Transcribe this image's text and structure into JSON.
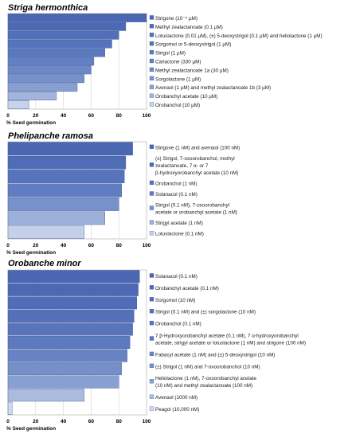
{
  "chart_data": [
    {
      "type": "bar",
      "orientation": "horizontal",
      "title": "Striga hermonthica",
      "xlabel": "% Seed germination",
      "xlim": [
        0,
        100
      ],
      "ticks": [
        0,
        20,
        40,
        60,
        80,
        100
      ],
      "grid": true,
      "legend": "right",
      "series": [
        {
          "name": "Strigone (10⁻⁵ µM)",
          "value": 100,
          "color": "#4b67b4"
        },
        {
          "name": "Methyl zealactanoate (0.1 µM)",
          "value": 85,
          "color": "#4d69b6"
        },
        {
          "name": "Lotuslactone (0.01 µM), (±) 5-deoxystrigol (0.1 µM) and heliolactone (1 µM)",
          "value": 80,
          "color": "#5170b9"
        },
        {
          "name": "Sorgomol or 5-deoxystrigol (1 µM)",
          "value": 75,
          "color": "#5574bb"
        },
        {
          "name": "Strigol (1 µM)",
          "value": 70,
          "color": "#5a79be"
        },
        {
          "name": "Carlactone (330 µM)",
          "value": 62,
          "color": "#6380c2"
        },
        {
          "name": "Methyl zealactanoate 1a (30 µM)",
          "value": 60,
          "color": "#6c88c6"
        },
        {
          "name": "Sorgolactone (1 µM)",
          "value": 55,
          "color": "#7792cb"
        },
        {
          "name": "Avenaol (1 µM) and methyl zealactanoate 1b (3 µM)",
          "value": 50,
          "color": "#879fd1"
        },
        {
          "name": "Orobanchyl acetate (10 µM)",
          "value": 35,
          "color": "#a3b5dc"
        },
        {
          "name": "Orobanchol (10 µM)",
          "value": 15,
          "color": "#c8d3eb"
        }
      ]
    },
    {
      "type": "bar",
      "orientation": "horizontal",
      "title": "Phelipanche ramosa",
      "xlabel": "% Seed germination",
      "xlim": [
        0,
        100
      ],
      "ticks": [
        0,
        20,
        40,
        60,
        80,
        100
      ],
      "grid": true,
      "legend": "right",
      "series": [
        {
          "name": "Strigone (1 nM) and avenaol (100 nM)",
          "value": 90,
          "color": "#4b67b4"
        },
        {
          "name": "(±) Strigol, 7-oxoorobanchol, methyl zealactanoate, 7 α- or 7 β-hydroxyorobanchyl acetate (10 nM)",
          "value": 85,
          "color": "#4f6cb7"
        },
        {
          "name": "Orobanchol (1 nM)",
          "value": 84,
          "color": "#5673bb"
        },
        {
          "name": "Solanacol (0.1 nM)",
          "value": 82,
          "color": "#607dc1"
        },
        {
          "name": "Strigol (0.1 nM), 7-oxoorobanchyl acetate or orobanchyl acetate (1 nM)",
          "value": 80,
          "color": "#7891cb"
        },
        {
          "name": "Strigyl acetate (1 nM)",
          "value": 70,
          "color": "#9cb0da"
        },
        {
          "name": "Lotuslactone (0.1 nM)",
          "value": 55,
          "color": "#c4d0ea"
        }
      ]
    },
    {
      "type": "bar",
      "orientation": "horizontal",
      "title": "Orobanche minor",
      "xlabel": "% Seed germination",
      "xlim": [
        0,
        100
      ],
      "ticks": [
        0,
        20,
        40,
        60,
        80,
        100
      ],
      "grid": true,
      "legend": "right",
      "series": [
        {
          "name": "Solanacol (0.1 nM)",
          "value": 95,
          "color": "#4b67b4"
        },
        {
          "name": "Orobanchyl acetate (0.1 nM)",
          "value": 94,
          "color": "#4d69b5"
        },
        {
          "name": "Sorgomol (10 nM)",
          "value": 93,
          "color": "#506db7"
        },
        {
          "name": "Strigol (0.1 nM) and (±) sorgolactone (10 nM)",
          "value": 91,
          "color": "#5470b9"
        },
        {
          "name": "Orobanchol (0.1 nM)",
          "value": 90,
          "color": "#5874bb"
        },
        {
          "name": "7 β-Hydroxyorobanchyl acetate (0.1 nM), 7 α-hydroxyorobanchyl acetate, strigyl acetate or lotuslactone (1 nM) and strigone (100 nM)",
          "value": 88,
          "color": "#5e7abf"
        },
        {
          "name": "Fabacyl acetate (1 nM) and (±) 5-deoxystrigol (10 nM)",
          "value": 86,
          "color": "#6783c3"
        },
        {
          "name": "(±) Strigol (1 nM) and 7-oxoorobanchol (10 nM)",
          "value": 82,
          "color": "#7590c9"
        },
        {
          "name": "Heliolactone (1 nM), 7-oxoorobanchyl acetate (10 nM) and methyl zealactanoate (100 nM)",
          "value": 80,
          "color": "#88a0d1"
        },
        {
          "name": "Avenaol (1000 nM)",
          "value": 55,
          "color": "#aabbdf"
        },
        {
          "name": "Peagol (10,000 nM)",
          "value": 3,
          "color": "#cdd7ed"
        }
      ]
    }
  ]
}
